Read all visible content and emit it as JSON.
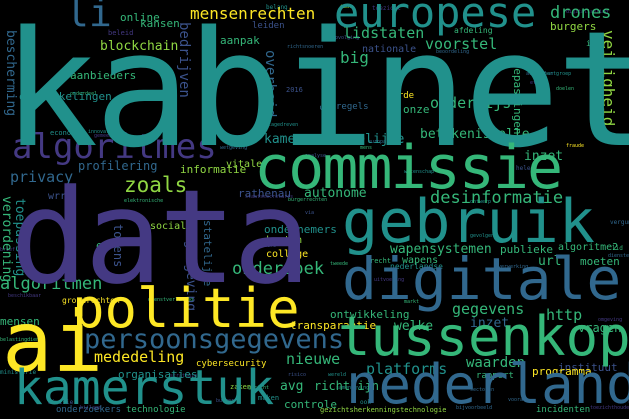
{
  "palette": {
    "background": "#000000",
    "teal": "#21918c",
    "green": "#35b779",
    "lime": "#90d743",
    "yellow": "#fde725",
    "blue": "#31688e",
    "indigo": "#443983",
    "purple": "#440154",
    "slate": "#3b528b"
  },
  "words": {
    "kabinet": "kabinet",
    "data": "data",
    "commissie": "commissie",
    "gebruik": "gebruik",
    "digitale": "digitale",
    "politie": "politie",
    "tussenkop": "tussenkop",
    "kamerstuk": "kamerstuk",
    "nederland": "nederland",
    "ai": "ai",
    "europese": "europese",
    "algoritmes": "algoritmes",
    "persoonsgegevens": "persoonsgegevens",
    "li": "li",
    "mensenrechten": "mensenrechten",
    "lidstaten": "lidstaten",
    "voorstel": "voorstel",
    "drones": "drones",
    "veiligheid": "veiligheid",
    "blockchain": "blockchain",
    "big": "big",
    "online": "online",
    "burgers": "burgers",
    "zoals": "zoals",
    "desinformatie": "desinformatie",
    "onderzoek": "onderzoek",
    "gegevens": "gegevens",
    "http": "http",
    "algoritmen": "algoritmen",
    "mededeling": "mededeling",
    "nieuwe": "nieuwe",
    "privacy": "privacy",
    "onderwijs": "onderwijs",
    "overheid": "overheid",
    "bedrijven": "bedrijven",
    "bescherming": "bescherming",
    "ontwikkelingen": "ontwikkelingen",
    "aanbieders": "aanbieders",
    "kansen": "kansen",
    "aanpak": "aanpak",
    "nationale": "nationale",
    "toepassingen": "toepassingen",
    "afdeling": "afdeling",
    "ict": "ict",
    "waarborgen": "waarborgen",
    "derde": "derde",
    "onze": "onze",
    "betekenisvolle": "betekenisvolle",
    "inzet": "inzet",
    "mensen": "mensen",
    "controle": "controle",
    "cybersecurity": "cybersecurity",
    "organisaties": "organisaties",
    "transparantie": "transparantie",
    "welke": "welke",
    "avg": "avg",
    "richtlijn": "richtlijn",
    "platforms": "platforms",
    "waarden": "waarden",
    "programma": "programma",
    "vragen": "vragen",
    "moeten": "moeten",
    "algoritme2": "algoritme2",
    "url": "url",
    "publieke": "publieke",
    "wapens": "wapens",
    "wapensystemen": "wapensystemen",
    "kosten": "kosten",
    "college": "college",
    "sociale": "sociale",
    "tokens": "tokens",
    "verordening": "verordening",
    "toepassing": "toepassing",
    "wrr": "wrr",
    "regelgeving": "regelgeving",
    "statelijke": "statelijke",
    "informatie": "informatie",
    "profilering": "profilering",
    "rathenau": "rathenau",
    "autonome": "autonome",
    "ondernemers": "ondernemers",
    "kamer": "kamer",
    "menselijke": "menselijke",
    "vitale": "vitale",
    "economie": "economie",
    "grondrechten": "grondrechten",
    "onderzoekers": "onderzoekers",
    "technologie": "technologie",
    "incidenten": "incidenten",
    "rapport": "rapport",
    "zaken": "zaken",
    "maken": "maken",
    "ontwikkeling": "ontwikkeling",
    "gezichtsherkenningstechnologie": "gezichtsherkenningstechnologie",
    "instituut": "instituut",
    "nederlandse": "nederlandse",
    "recht": "recht",
    "eu": "eu",
    "regels": "regels",
    "fraude": "fraude",
    "tweede": "tweede",
    "jaar": "jaar",
    "2016": "2016",
    "actieplan": "actieplan",
    "expertgroep": "expertgroep",
    "richtsnoeren": "richtsnoeren",
    "ethiek": "ethiek",
    "doelen": "doelen",
    "analyse": "analyse",
    "datagedreven": "datagedreven",
    "beleid": "beleid",
    "mens": "mens",
    "vergunning": "vergunning",
    "toezicht": "toezicht",
    "leiden": "leiden",
    "belang": "belang",
    "lid": "lid",
    "toezichthouders": "toezichthouders",
    "europa": "europa",
    "divisie": "divisie",
    "gemeenten": "gemeenten",
    "ontwerp": "ontwerp",
    "wetgeving": "wetgeving",
    "bijlage": "bijlage",
    "opvolging": "opvolging",
    "innovatie": "innovatie",
    "burgerrechten": "burgerrechten",
    "staatssecretaris": "staatssecretaris",
    "beoordeling": "beoordeling",
    "binnenlandse": "binnenlandse",
    "onderdeel": "onderdeel",
    "omgeving": "omgeving",
    "ministerie": "ministerie",
    "sectoren": "sectoren",
    "elektronische": "elektronische",
    "via": "via",
    "brief": "brief",
    "gevolgen": "gevolgen",
    "verwerking": "verwerking",
    "dienstverlening": "dienstverlening",
    "uitvoering": "uitvoering",
    "risico": "risico",
    "wereld": "wereld",
    "vooral": "vooral",
    "markt": "markt",
    "strategie": "strategie",
    "burger": "burger",
    "samenleving": "samenleving",
    "belastingdienst": "belastingdienst",
    "diensten": "diensten",
    "digitalisering": "digitalisering",
    "wetenschap": "wetenschap",
    "hele": "hele",
    "gericht": "gericht",
    "bijvoorbeeld": "bijvoorbeeld",
    "beschikbaar": "beschikbaar",
    "ook": "ook",
    "nadere": "nadere"
  }
}
